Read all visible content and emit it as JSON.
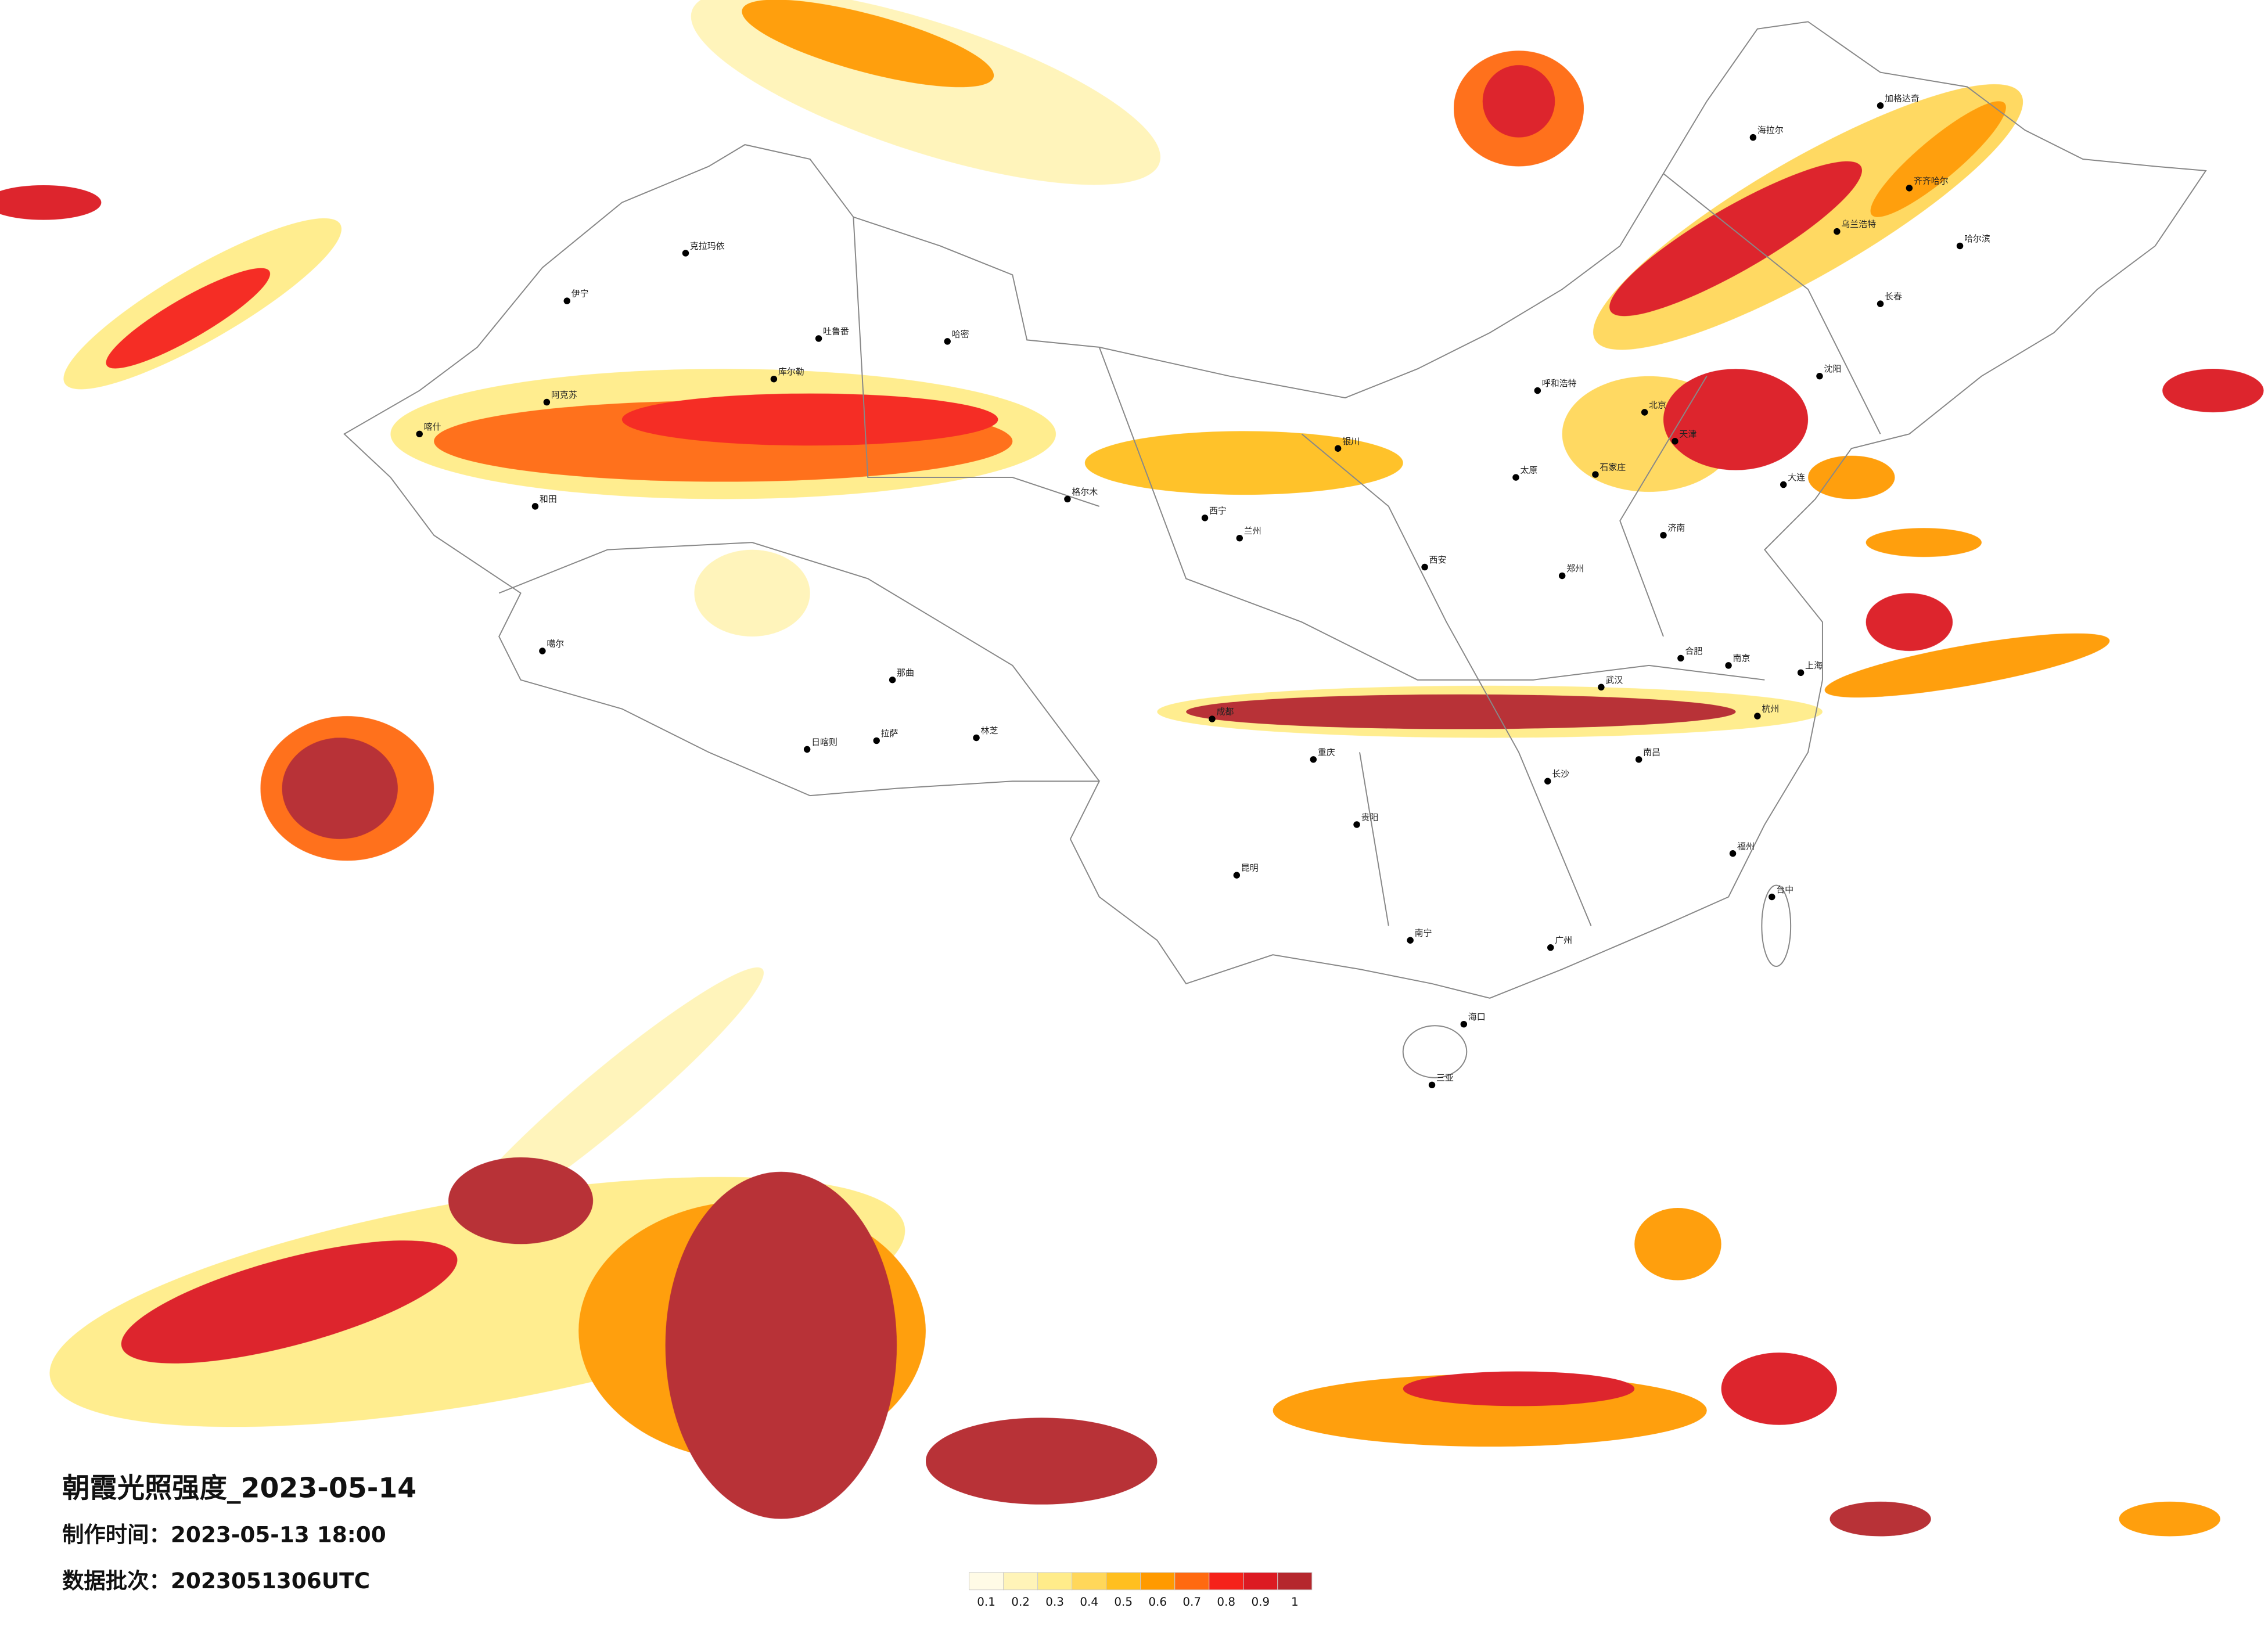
{
  "title": "朝霞光照强度_2023-05-14",
  "made_time": "制作时间：2023-05-13 18:00",
  "batch": "数据批次：2023051306UTC",
  "legend": {
    "labels": [
      0.1,
      0.2,
      0.3,
      0.4,
      0.5,
      0.6,
      0.7,
      0.8,
      0.9,
      1
    ],
    "colors": [
      "#fffbe6",
      "#fff4b8",
      "#ffec8a",
      "#ffd75a",
      "#ffbf1f",
      "#ff9a00",
      "#ff6a10",
      "#f5221a",
      "#dc1a22",
      "#b5272d"
    ]
  },
  "cities": [
    "伊宁",
    "克拉玛依",
    "吐鲁番",
    "哈密",
    "库尔勒",
    "阿克苏",
    "喀什",
    "和田",
    "噶尔",
    "日喀则",
    "拉萨",
    "林芝",
    "那曲",
    "格尔木",
    "西宁",
    "兰州",
    "银川",
    "呼和浩特",
    "北京",
    "天津",
    "石家庄",
    "太原",
    "郑州",
    "西安",
    "成都",
    "重庆",
    "武汉",
    "南京",
    "上海",
    "杭州",
    "合肥",
    "南昌",
    "长沙",
    "贵阳",
    "昆明",
    "南宁",
    "广州",
    "福州",
    "台中",
    "海口",
    "三亚",
    "沈阳",
    "长春",
    "哈尔滨",
    "济南",
    "大连",
    "齐齐哈尔",
    "海拉尔",
    "乌兰浩特",
    "加格达奇"
  ]
}
